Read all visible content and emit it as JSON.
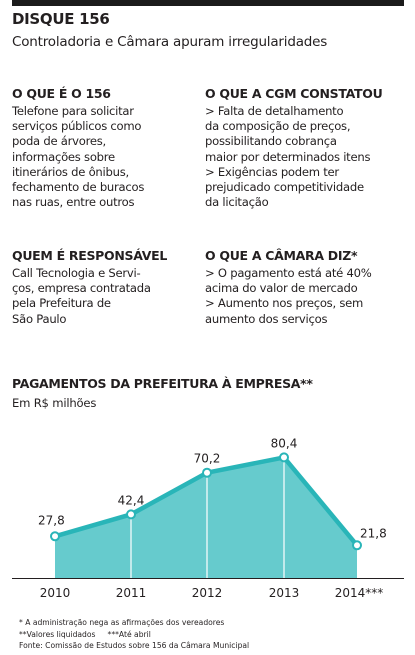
{
  "header": {
    "title": "DISQUE 156",
    "subtitle": "Controladoria e Câmara apuram irregularidades"
  },
  "blocks": {
    "what_is": {
      "heading": "O QUE É O 156",
      "lines": [
        "Telefone para solicitar",
        "serviços públicos como",
        "poda de árvores,",
        "informações sobre",
        "itinerários de ônibus,",
        "fechamento de buracos",
        "nas ruas, entre outros"
      ]
    },
    "cgm": {
      "heading": "O QUE A CGM CONSTATOU",
      "lines": [
        "> Falta de detalhamento",
        "da composição de preços,",
        "possibilitando cobrança",
        "maior por determinados itens",
        "> Exigências podem ter",
        "prejudicado competitividade",
        "da licitação"
      ]
    },
    "responsible": {
      "heading": "QUEM É RESPONSÁVEL",
      "lines": [
        "Call Tecnologia e Servi-",
        "ços, empresa contratada",
        "pela Prefeitura de",
        "São Paulo"
      ]
    },
    "camara": {
      "heading": "O QUE A CÂMARA DIZ*",
      "lines": [
        "> O pagamento está até 40%",
        "acima do valor de mercado",
        "> Aumento nos preços, sem",
        "aumento dos serviços"
      ]
    }
  },
  "chart_data": {
    "type": "area",
    "title": "PAGAMENTOS DA PREFEITURA À EMPRESA**",
    "ylabel": "Em R$ milhões",
    "categories": [
      "2010",
      "2011",
      "2012",
      "2013",
      "2014***"
    ],
    "series": [
      {
        "values": [
          27.8,
          42.4,
          70.2,
          80.4,
          21.8
        ],
        "labels": [
          "27,8",
          "42,4",
          "70,2",
          "80,4",
          "21,8"
        ]
      }
    ],
    "ylim": [
      0,
      100
    ],
    "grid": false,
    "colors": {
      "fill": "#66cbcd",
      "line": "#29b5b8",
      "divider": "#ffffff"
    }
  },
  "footnotes": {
    "note1": "* A administração nega as afirmações dos vereadores",
    "note2": "**Valores liquidados     ***Até abril",
    "source": "Fonte: Comissão de Estudos sobre 156 da Câmara Municipal"
  }
}
